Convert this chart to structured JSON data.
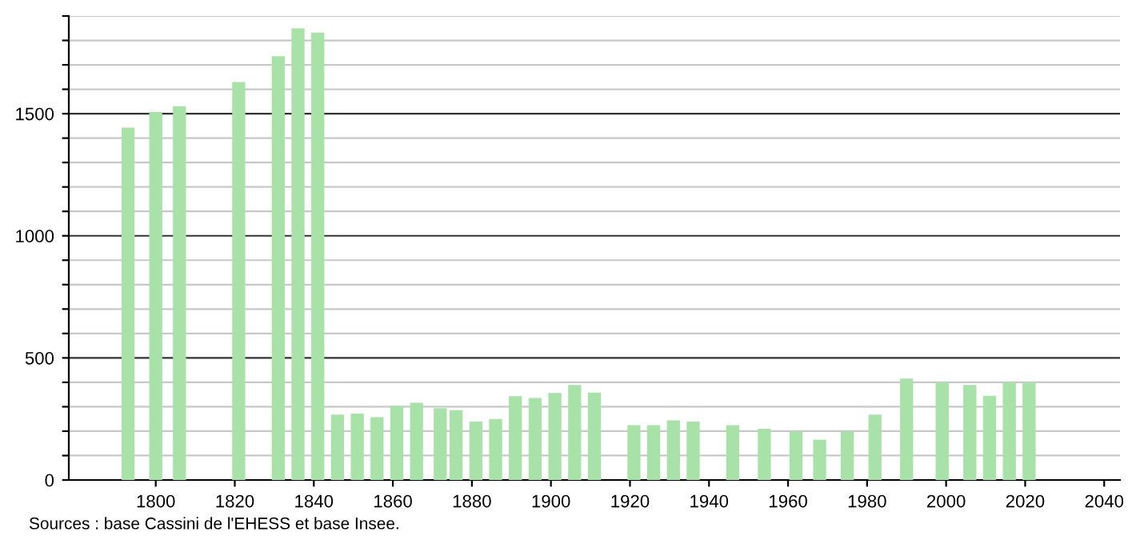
{
  "chart_data": {
    "type": "bar",
    "x": [
      1793,
      1800,
      1806,
      1821,
      1831,
      1836,
      1841,
      1846,
      1851,
      1856,
      1861,
      1866,
      1872,
      1876,
      1881,
      1886,
      1891,
      1896,
      1901,
      1906,
      1911,
      1921,
      1926,
      1931,
      1936,
      1946,
      1954,
      1962,
      1968,
      1975,
      1982,
      1990,
      1999,
      2006,
      2011,
      2016,
      2021
    ],
    "values": [
      1443,
      1507,
      1531,
      1630,
      1735,
      1849,
      1832,
      268,
      272,
      257,
      303,
      316,
      294,
      286,
      239,
      250,
      343,
      336,
      356,
      389,
      358,
      224,
      224,
      244,
      239,
      224,
      210,
      198,
      165,
      198,
      268,
      415,
      400,
      389,
      345,
      400,
      400
    ],
    "color": "#a8e2a8",
    "xlim": [
      1778,
      2044
    ],
    "xticks": [
      1800,
      1820,
      1840,
      1860,
      1880,
      1900,
      1920,
      1940,
      1960,
      1980,
      2000,
      2020,
      2040
    ],
    "ylim": [
      0,
      1900
    ],
    "yticks": [
      0,
      {
        "value": 100,
        "label": null
      },
      {
        "value": 200,
        "label": null
      },
      {
        "value": 300,
        "label": null
      },
      {
        "value": 400,
        "label": null
      },
      500,
      {
        "value": 600,
        "label": null
      },
      {
        "value": 700,
        "label": null
      },
      {
        "value": 800,
        "label": null
      },
      {
        "value": 900,
        "label": null
      },
      1000,
      {
        "value": 1100,
        "label": null
      },
      {
        "value": 1200,
        "label": null
      },
      {
        "value": 1300,
        "label": null
      },
      {
        "value": 1400,
        "label": null
      },
      1500,
      {
        "value": 1600,
        "label": null
      },
      {
        "value": 1700,
        "label": null
      },
      {
        "value": 1800,
        "label": null
      },
      {
        "value": 1900,
        "label": null
      }
    ],
    "grid": "y",
    "annotations": [
      "Sources : base Cassini de l'EHESS et base Insee."
    ]
  }
}
